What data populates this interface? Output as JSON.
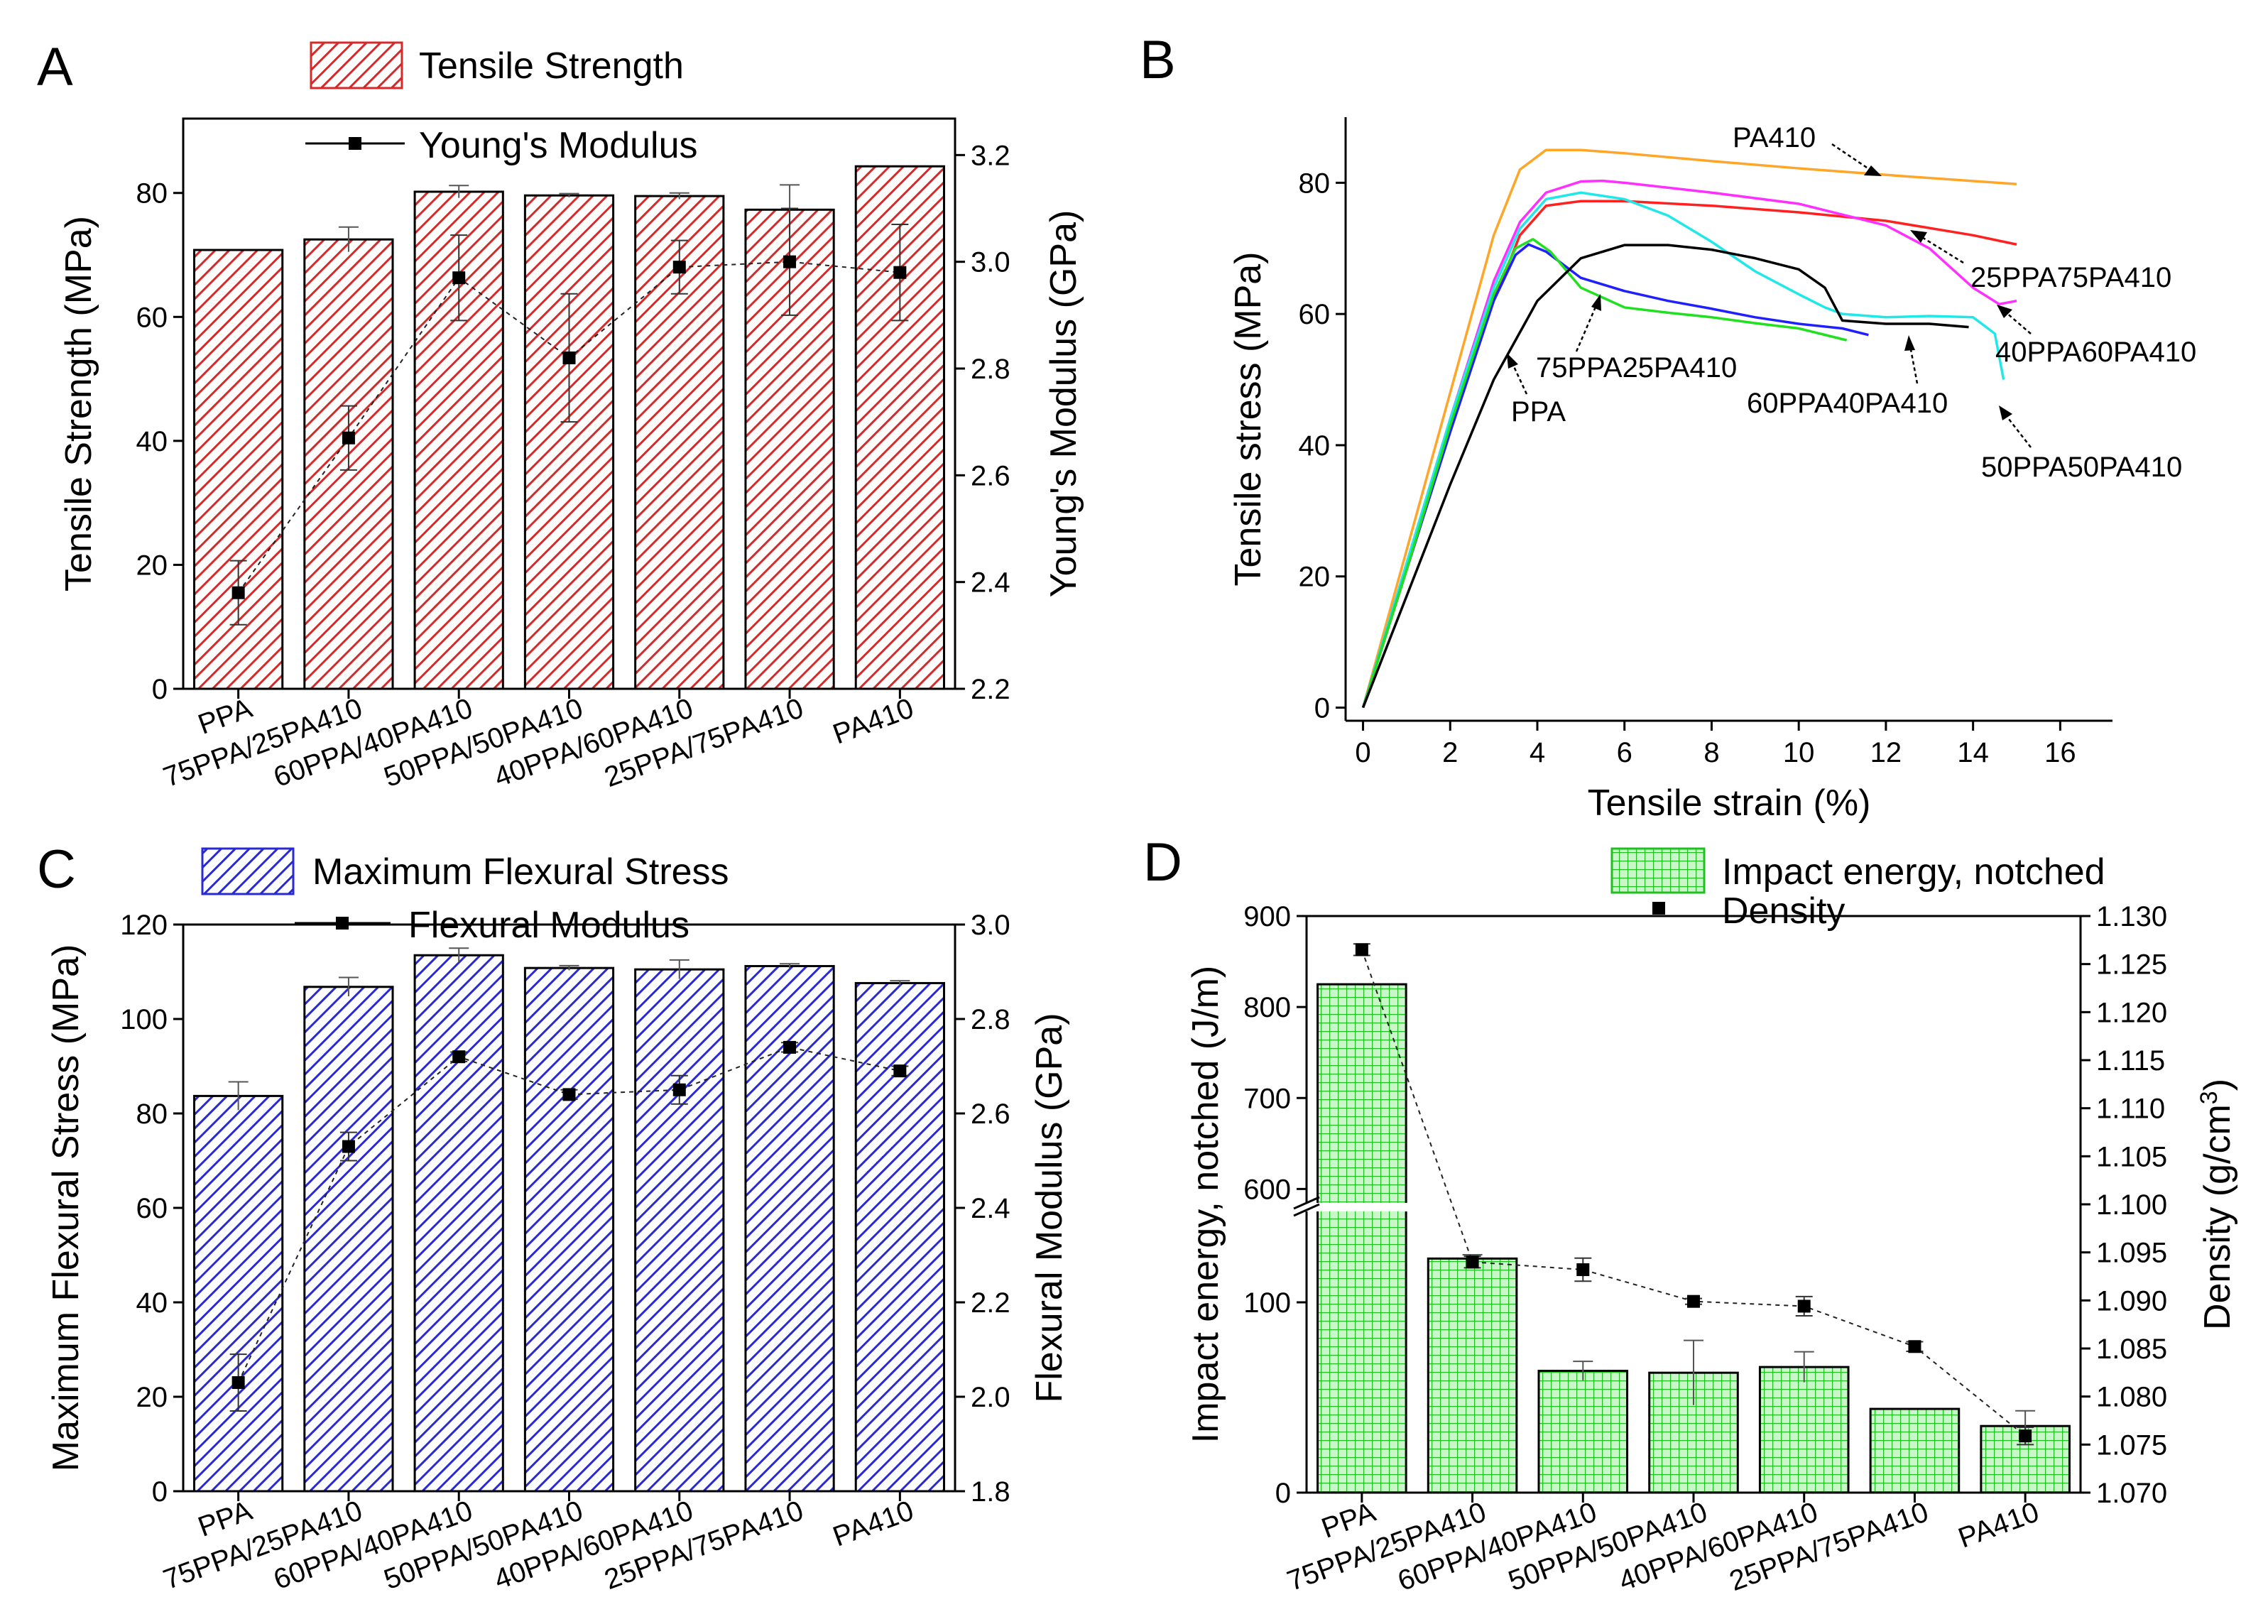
{
  "chart_data": [
    {
      "panel": "A",
      "type": "bar",
      "categories": [
        "PPA",
        "75PPA/25PA410",
        "60PPA/40PA410",
        "50PPA/50PA410",
        "40PPA/60PA410",
        "25PPA/75PA410",
        "PA410"
      ],
      "series": [
        {
          "name": "Tensile Strength",
          "axis": "left",
          "kind": "bar",
          "color": "#d42a2a",
          "fill": "#f2b5b5",
          "values": [
            70.8,
            72.5,
            80.2,
            79.6,
            79.5,
            77.3,
            84.3
          ],
          "errors": [
            0,
            2,
            1,
            0.3,
            0.5,
            4,
            0
          ]
        },
        {
          "name": "Young's Modulus",
          "axis": "right",
          "kind": "line",
          "color": "#000000",
          "values": [
            2.38,
            2.67,
            2.97,
            2.82,
            2.99,
            3.0,
            2.98
          ],
          "errors": [
            0.06,
            0.06,
            0.08,
            0.12,
            0.05,
            0.1,
            0.09
          ]
        }
      ],
      "ylabel": "Tensile Strength (MPa)",
      "y2label": "Young's Modulus (GPa)",
      "ylim": [
        0,
        92
      ],
      "yticks": [
        0,
        20,
        40,
        60,
        80
      ],
      "y2lim": [
        2.2,
        3.2683
      ],
      "y2ticks": [
        2.2,
        2.4,
        2.6,
        2.8,
        3.0,
        3.2
      ],
      "legend": [
        "Tensile Strength",
        "Young's Modulus"
      ],
      "legend_position": "top-left"
    },
    {
      "panel": "B",
      "type": "line",
      "xlabel": "Tensile strain (%)",
      "ylabel": "Tensile stress (MPa)",
      "xlim": [
        -0.4,
        17.2
      ],
      "xticks": [
        0,
        2,
        4,
        6,
        8,
        10,
        12,
        14,
        16
      ],
      "ylim": [
        -2,
        90
      ],
      "yticks": [
        0,
        20,
        40,
        60,
        80
      ],
      "series": [
        {
          "name": "PA410",
          "color": "#ffa528",
          "x": [
            0,
            1,
            2,
            3,
            3.6,
            4.2,
            5,
            6,
            8,
            10,
            12,
            15
          ],
          "y": [
            0,
            24,
            48,
            72,
            82,
            85,
            85,
            84.5,
            83.3,
            82.2,
            81.2,
            79.8
          ]
        },
        {
          "name": "25PPA75PA410",
          "color": "#ff2020",
          "x": [
            0,
            1,
            2,
            3,
            3.6,
            4.2,
            5,
            6,
            8,
            10,
            12,
            14,
            15
          ],
          "y": [
            0,
            21,
            42,
            62,
            72,
            76.5,
            77.2,
            77.2,
            76.5,
            75.5,
            74.2,
            72,
            70.6
          ]
        },
        {
          "name": "40PPA60PA410",
          "color": "#ff30ff",
          "x": [
            0,
            1,
            2,
            3,
            3.6,
            4.2,
            5,
            5.5,
            6,
            8,
            10,
            12,
            13,
            14,
            14.6,
            15
          ],
          "y": [
            0,
            22,
            44,
            65,
            74,
            78.5,
            80.2,
            80.3,
            80,
            78.5,
            76.8,
            73.5,
            70,
            64,
            61.5,
            62
          ]
        },
        {
          "name": "50PPA50PA410",
          "color": "#20e8e8",
          "x": [
            0,
            1,
            2,
            3,
            3.6,
            4.2,
            5,
            6,
            7,
            8,
            9,
            10,
            10.6,
            11,
            12,
            13,
            14,
            14.5,
            14.7
          ],
          "y": [
            0,
            22,
            44,
            64,
            73,
            77.5,
            78.5,
            77.5,
            75,
            71,
            66.5,
            63,
            61,
            60,
            59.5,
            59.7,
            59.5,
            57,
            50
          ]
        },
        {
          "name": "60PPA40PA410",
          "color": "#2020ff",
          "x": [
            0,
            1,
            2,
            3,
            3.5,
            3.8,
            4.2,
            5,
            6,
            7,
            8,
            9,
            10,
            11,
            11.6
          ],
          "y": [
            0,
            21,
            42,
            62,
            69,
            70.6,
            69.5,
            65.5,
            63.5,
            62,
            60.8,
            59.5,
            58.5,
            57.8,
            56.8
          ]
        },
        {
          "name": "75PPA25PA410",
          "color": "#20e020",
          "x": [
            0,
            1,
            2,
            3,
            3.5,
            3.9,
            4.3,
            5,
            6,
            7,
            8,
            9,
            10,
            11.1
          ],
          "y": [
            0,
            21,
            43,
            63,
            70,
            71.4,
            69.5,
            64,
            61,
            60.2,
            59.5,
            58.6,
            57.8,
            56
          ]
        },
        {
          "name": "PPA",
          "color": "#000000",
          "x": [
            0,
            1,
            2,
            3,
            4,
            5,
            6,
            7,
            8,
            9,
            10,
            10.6,
            11,
            12,
            13,
            13.9
          ],
          "y": [
            0,
            17,
            34,
            50,
            62,
            68.5,
            70.5,
            70.5,
            69.8,
            68.5,
            66.8,
            64,
            59,
            58.5,
            58.5,
            58
          ]
        }
      ],
      "annotations": [
        "PA410",
        "25PPA75PA410",
        "40PPA60PA410",
        "50PPA50PA410",
        "60PPA40PA410",
        "75PPA25PA410",
        "PPA"
      ]
    },
    {
      "panel": "C",
      "type": "bar",
      "categories": [
        "PPA",
        "75PPA/25PA410",
        "60PPA/40PA410",
        "50PPA/50PA410",
        "40PPA/60PA410",
        "25PPA/75PA410",
        "PA410"
      ],
      "series": [
        {
          "name": "Maximum Flexural Stress",
          "axis": "left",
          "kind": "bar",
          "color": "#2a2ad4",
          "fill": "#b5b5f2",
          "values": [
            83.7,
            106.8,
            113.5,
            110.8,
            110.5,
            111.2,
            107.6
          ],
          "errors": [
            3,
            2,
            1.5,
            0.5,
            2,
            0.5,
            0.5
          ]
        },
        {
          "name": "Flexural Modulus",
          "axis": "right",
          "kind": "line",
          "color": "#000000",
          "values": [
            2.03,
            2.53,
            2.72,
            2.64,
            2.65,
            2.74,
            2.69
          ],
          "errors": [
            0.06,
            0.03,
            0.01,
            0.01,
            0.03,
            0.01,
            0.01
          ]
        }
      ],
      "ylabel": "Maximum Flexural Stress (MPa)",
      "y2label": "Flexural Modulus (GPa)",
      "ylim": [
        0,
        120
      ],
      "yticks": [
        0,
        20,
        40,
        60,
        80,
        100,
        120
      ],
      "y2lim": [
        1.8,
        3.0
      ],
      "y2ticks": [
        1.8,
        2.0,
        2.2,
        2.4,
        2.6,
        2.8,
        3.0
      ],
      "legend": [
        "Maximum Flexural Stress",
        "Flexural Modulus"
      ],
      "legend_position": "top-left"
    },
    {
      "panel": "D",
      "type": "bar",
      "categories": [
        "PPA",
        "75PPA/25PA410",
        "60PPA/40PA410",
        "50PPA/50PA410",
        "40PPA/60PA410",
        "25PPA/75PA410",
        "PA410"
      ],
      "series": [
        {
          "name": "Impact energy, notched",
          "axis": "left",
          "kind": "bar",
          "color": "#20c020",
          "fill": "#b8f5b8",
          "values": [
            825,
            123,
            64,
            63,
            66,
            44,
            35
          ],
          "errors": [
            0,
            2,
            5,
            17,
            8,
            0,
            8
          ]
        },
        {
          "name": "Density",
          "axis": "right",
          "kind": "scatter-line",
          "color": "#000000",
          "values": [
            1.1265,
            1.094,
            1.0932,
            1.0899,
            1.0894,
            1.0852,
            1.0759
          ],
          "errors": [
            0.0006,
            0.0006,
            0.0012,
            0.0003,
            0.001,
            0.0005,
            0.0009
          ]
        }
      ],
      "ylabel": "Impact energy, notched (J/m)",
      "y2label": "Density (g/cm",
      "y2label_sup": "3",
      "y2label_end": ")",
      "ylim": [
        0,
        900
      ],
      "yticks": [
        0,
        100,
        600,
        700,
        800,
        900
      ],
      "axis_break": [
        150,
        580
      ],
      "y2lim": [
        1.07,
        1.13
      ],
      "y2ticks": [
        "1.070",
        "1.075",
        "1.080",
        "1.085",
        "1.090",
        "1.095",
        "1.100",
        "1.105",
        "1.110",
        "1.115",
        "1.120",
        "1.125",
        "1.130"
      ],
      "legend": [
        "Impact energy, notched",
        "Density"
      ],
      "legend_position": "top-right"
    }
  ],
  "panel_labels": [
    "A",
    "B",
    "C",
    "D"
  ]
}
